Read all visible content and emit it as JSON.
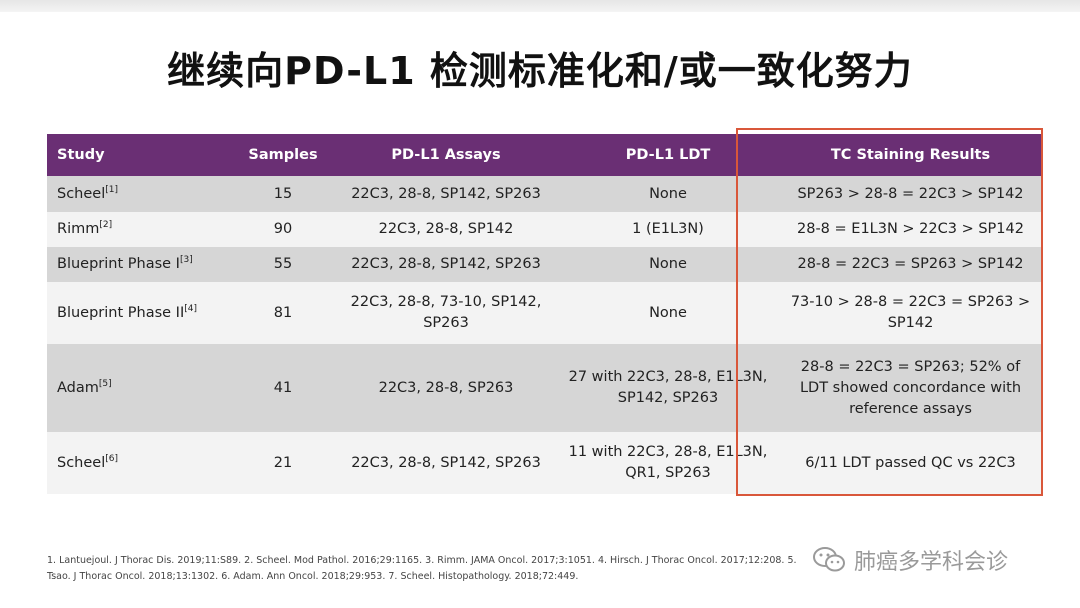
{
  "title": "继续向PD-L1 检测标准化和/或一致化努力",
  "table": {
    "headers": [
      "Study",
      "Samples",
      "PD-L1 Assays",
      "PD-L1 LDT",
      "TC Staining Results"
    ],
    "rows": [
      {
        "study": "Scheel",
        "ref": "[1]",
        "samples": "15",
        "assays": "22C3, 28-8, SP142, SP263",
        "ldt": "None",
        "result": "SP263 > 28-8 = 22C3 > SP142"
      },
      {
        "study": "Rimm",
        "ref": "[2]",
        "samples": "90",
        "assays": "22C3, 28-8, SP142",
        "ldt": "1 (E1L3N)",
        "result": "28-8 = E1L3N > 22C3 > SP142"
      },
      {
        "study": "Blueprint Phase I",
        "ref": "[3]",
        "samples": "55",
        "assays": "22C3, 28-8, SP142, SP263",
        "ldt": "None",
        "result": "28-8 = 22C3 = SP263 > SP142"
      },
      {
        "study": "Blueprint Phase II",
        "ref": "[4]",
        "samples": "81",
        "assays": "22C3, 28-8, 73-10, SP142, SP263",
        "ldt": "None",
        "result": "73-10 > 28-8 = 22C3 = SP263 > SP142"
      },
      {
        "study": "Adam",
        "ref": "[5]",
        "samples": "41",
        "assays": "22C3, 28-8, SP263",
        "ldt": "27 with 22C3, 28-8, E1L3N, SP142, SP263",
        "result": "28-8 = 22C3 = SP263; 52% of LDT showed concordance with reference assays"
      },
      {
        "study": "Scheel",
        "ref": "[6]",
        "samples": "21",
        "assays": "22C3, 28-8, SP142, SP263",
        "ldt": "11 with 22C3, 28-8, E1L3N, QR1, SP263",
        "result": "6/11 LDT passed QC vs 22C3"
      }
    ]
  },
  "footnote": "1. Lantuejoul. J Thorac Dis. 2019;11:S89. 2. Scheel. Mod Pathol. 2016;29:1165. 3. Rimm. JAMA Oncol. 2017;3:1051. 4. Hirsch. J Thorac Oncol. 2017;12:208. 5. Tsao. J Thorac Oncol. 2018;13:1302. 6. Adam. Ann Oncol. 2018;29:953. 7. Scheel. Histopathology. 2018;72:449.",
  "watermark": {
    "text": "肺癌多学科会诊",
    "icon": "wechat-icon"
  },
  "colors": {
    "header": "#6a2f74",
    "highlight_border": "#d9573a",
    "row_dark": "#d6d6d6",
    "row_light": "#f3f3f3"
  }
}
